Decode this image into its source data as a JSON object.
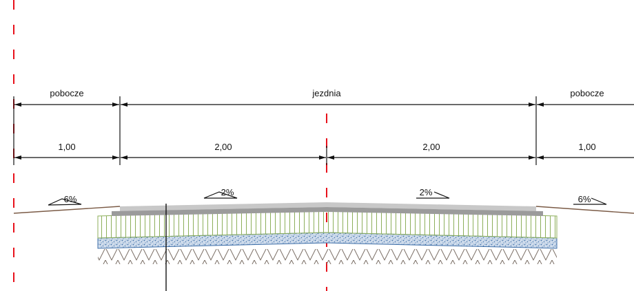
{
  "labels": {
    "left_shoulder": "pobocze",
    "roadway": "jezdnia",
    "right_shoulder": "pobocze"
  },
  "dimensions": {
    "left_shoulder": "1,00",
    "left_lane": "2,00",
    "right_lane": "2,00",
    "right_shoulder": "1,00"
  },
  "slopes": {
    "left_shoulder": "6%",
    "left_lane": "2%",
    "right_lane": "2%",
    "right_shoulder": "6%"
  },
  "colors": {
    "axis": "#e8101a",
    "dimension": "#111111",
    "surface_top": "#c8c8c8",
    "surface_bottom": "#9b9b9b",
    "base_fill": "#ffffff",
    "base_stroke": "#8cae5a",
    "subbase_fill": "#cfdcec",
    "subbase_dots": "#3d6ea8",
    "soil_hatch": "#7b6f66",
    "ground_line": "#7a5a45"
  }
}
